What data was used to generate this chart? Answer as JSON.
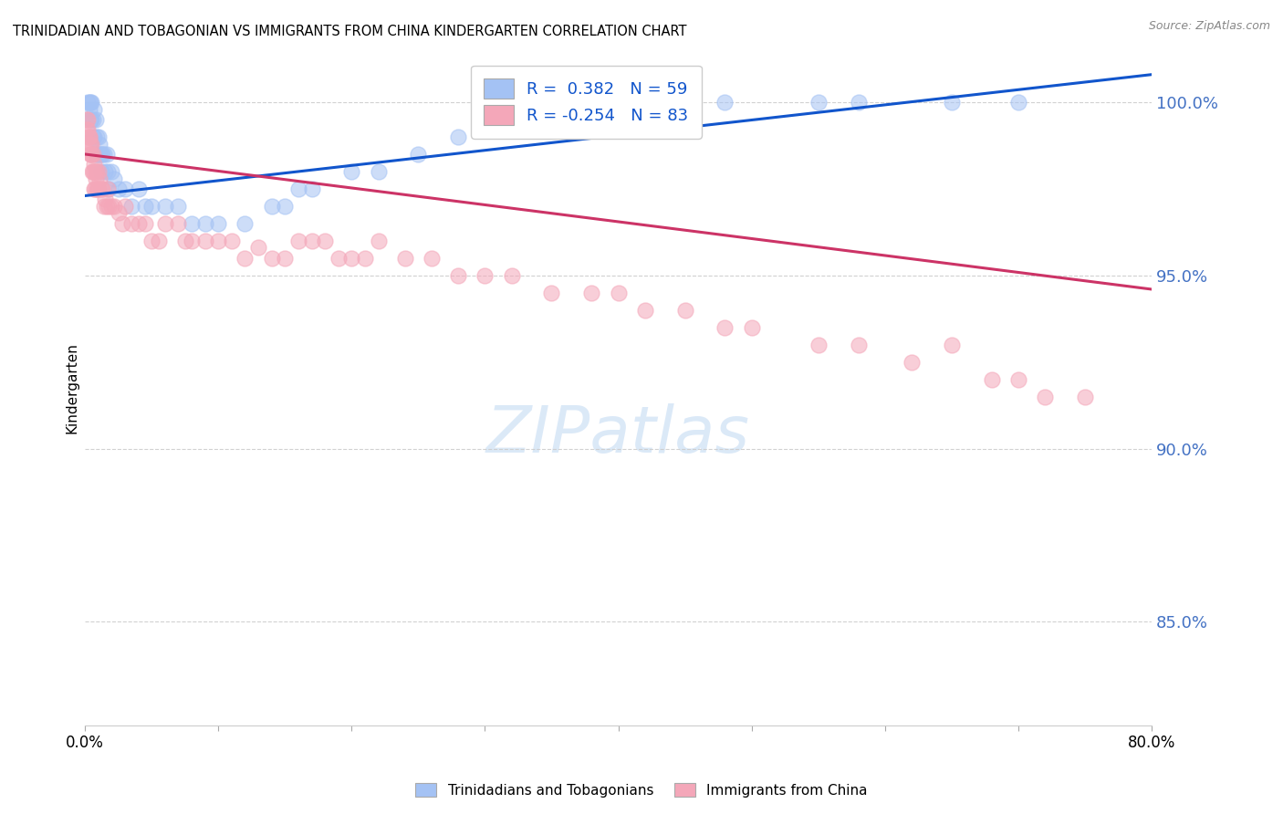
{
  "title": "TRINIDADIAN AND TOBAGONIAN VS IMMIGRANTS FROM CHINA KINDERGARTEN CORRELATION CHART",
  "source": "Source: ZipAtlas.com",
  "ylabel": "Kindergarten",
  "y_ticks": [
    85.0,
    90.0,
    95.0,
    100.0
  ],
  "x_min": 0.0,
  "x_max": 80.0,
  "y_min": 82.0,
  "y_max": 101.5,
  "blue_R": 0.382,
  "blue_N": 59,
  "pink_R": -0.254,
  "pink_N": 83,
  "blue_label": "Trinidadians and Tobagonians",
  "pink_label": "Immigrants from China",
  "blue_color": "#a4c2f4",
  "pink_color": "#f4a7b9",
  "blue_line_color": "#1155cc",
  "pink_line_color": "#cc3366",
  "watermark_text": "ZIPatlas",
  "blue_scatter_x": [
    0.2,
    0.3,
    0.3,
    0.4,
    0.4,
    0.5,
    0.5,
    0.6,
    0.6,
    0.7,
    0.7,
    0.8,
    0.8,
    0.9,
    0.9,
    1.0,
    1.0,
    1.1,
    1.1,
    1.2,
    1.2,
    1.3,
    1.4,
    1.5,
    1.6,
    1.7,
    1.8,
    2.0,
    2.2,
    2.5,
    3.0,
    3.5,
    4.0,
    4.5,
    5.0,
    6.0,
    7.0,
    8.0,
    9.0,
    10.0,
    12.0,
    14.0,
    15.0,
    16.0,
    17.0,
    20.0,
    22.0,
    25.0,
    28.0,
    32.0,
    35.0,
    38.0,
    42.0,
    45.0,
    48.0,
    55.0,
    58.0,
    65.0,
    70.0
  ],
  "blue_scatter_y": [
    100.0,
    100.0,
    99.8,
    100.0,
    99.5,
    100.0,
    99.5,
    99.5,
    99.0,
    99.8,
    99.0,
    99.5,
    98.5,
    99.0,
    98.5,
    99.0,
    98.5,
    98.8,
    98.5,
    98.5,
    98.0,
    98.5,
    98.5,
    98.0,
    98.5,
    98.0,
    97.5,
    98.0,
    97.8,
    97.5,
    97.5,
    97.0,
    97.5,
    97.0,
    97.0,
    97.0,
    97.0,
    96.5,
    96.5,
    96.5,
    96.5,
    97.0,
    97.0,
    97.5,
    97.5,
    98.0,
    98.0,
    98.5,
    99.0,
    99.5,
    100.0,
    100.0,
    100.0,
    100.0,
    100.0,
    100.0,
    100.0,
    100.0,
    100.0
  ],
  "pink_scatter_x": [
    0.1,
    0.2,
    0.2,
    0.3,
    0.3,
    0.4,
    0.4,
    0.5,
    0.5,
    0.6,
    0.6,
    0.7,
    0.7,
    0.8,
    0.8,
    0.9,
    1.0,
    1.0,
    1.1,
    1.2,
    1.3,
    1.4,
    1.5,
    1.6,
    1.7,
    1.8,
    2.0,
    2.2,
    2.5,
    2.8,
    3.0,
    3.5,
    4.0,
    4.5,
    5.0,
    5.5,
    6.0,
    7.0,
    7.5,
    8.0,
    9.0,
    10.0,
    11.0,
    12.0,
    13.0,
    14.0,
    15.0,
    16.0,
    17.0,
    18.0,
    19.0,
    20.0,
    21.0,
    22.0,
    24.0,
    26.0,
    28.0,
    30.0,
    32.0,
    35.0,
    38.0,
    40.0,
    42.0,
    45.0,
    48.0,
    50.0,
    55.0,
    58.0,
    62.0,
    65.0,
    68.0,
    70.0,
    72.0,
    75.0,
    0.15,
    0.25,
    0.35,
    0.45,
    0.55,
    0.65,
    0.75,
    0.85,
    0.95
  ],
  "pink_scatter_y": [
    99.5,
    99.5,
    99.2,
    99.0,
    99.0,
    98.8,
    98.5,
    98.5,
    98.8,
    98.5,
    98.0,
    98.2,
    98.0,
    98.0,
    97.8,
    97.5,
    98.0,
    97.5,
    97.8,
    97.5,
    97.5,
    97.0,
    97.2,
    97.0,
    97.5,
    97.0,
    97.0,
    97.0,
    96.8,
    96.5,
    97.0,
    96.5,
    96.5,
    96.5,
    96.0,
    96.0,
    96.5,
    96.5,
    96.0,
    96.0,
    96.0,
    96.0,
    96.0,
    95.5,
    95.8,
    95.5,
    95.5,
    96.0,
    96.0,
    96.0,
    95.5,
    95.5,
    95.5,
    96.0,
    95.5,
    95.5,
    95.0,
    95.0,
    95.0,
    94.5,
    94.5,
    94.5,
    94.0,
    94.0,
    93.5,
    93.5,
    93.0,
    93.0,
    92.5,
    93.0,
    92.0,
    92.0,
    91.5,
    91.5,
    99.2,
    99.0,
    98.8,
    98.5,
    98.0,
    97.5,
    97.5,
    98.0,
    97.5
  ]
}
